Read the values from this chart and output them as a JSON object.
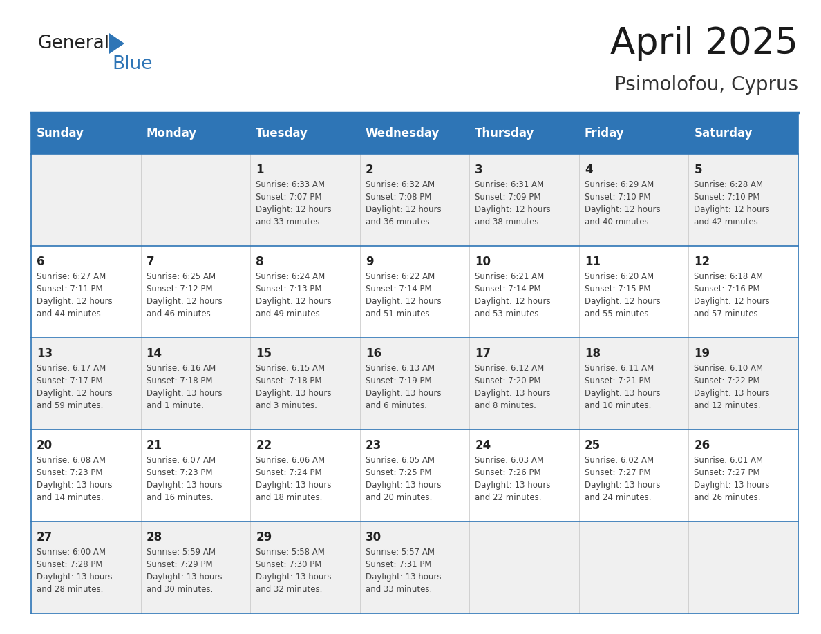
{
  "title": "April 2025",
  "subtitle": "Psimolofou, Cyprus",
  "header_bg": "#2e75b6",
  "header_text": "#ffffff",
  "day_names": [
    "Sunday",
    "Monday",
    "Tuesday",
    "Wednesday",
    "Thursday",
    "Friday",
    "Saturday"
  ],
  "row_bg_even": "#f0f0f0",
  "row_bg_odd": "#ffffff",
  "cell_text_color": "#444444",
  "day_num_color": "#222222",
  "grid_line_color": "#2e75b6",
  "logo_general_color": "#222222",
  "logo_blue_color": "#2e75b6",
  "logo_triangle_color": "#2e75b6",
  "calendar": [
    [
      {
        "day": null
      },
      {
        "day": null
      },
      {
        "day": 1,
        "sunrise": "6:33 AM",
        "sunset": "7:07 PM",
        "daylight": "12 hours\nand 33 minutes."
      },
      {
        "day": 2,
        "sunrise": "6:32 AM",
        "sunset": "7:08 PM",
        "daylight": "12 hours\nand 36 minutes."
      },
      {
        "day": 3,
        "sunrise": "6:31 AM",
        "sunset": "7:09 PM",
        "daylight": "12 hours\nand 38 minutes."
      },
      {
        "day": 4,
        "sunrise": "6:29 AM",
        "sunset": "7:10 PM",
        "daylight": "12 hours\nand 40 minutes."
      },
      {
        "day": 5,
        "sunrise": "6:28 AM",
        "sunset": "7:10 PM",
        "daylight": "12 hours\nand 42 minutes."
      }
    ],
    [
      {
        "day": 6,
        "sunrise": "6:27 AM",
        "sunset": "7:11 PM",
        "daylight": "12 hours\nand 44 minutes."
      },
      {
        "day": 7,
        "sunrise": "6:25 AM",
        "sunset": "7:12 PM",
        "daylight": "12 hours\nand 46 minutes."
      },
      {
        "day": 8,
        "sunrise": "6:24 AM",
        "sunset": "7:13 PM",
        "daylight": "12 hours\nand 49 minutes."
      },
      {
        "day": 9,
        "sunrise": "6:22 AM",
        "sunset": "7:14 PM",
        "daylight": "12 hours\nand 51 minutes."
      },
      {
        "day": 10,
        "sunrise": "6:21 AM",
        "sunset": "7:14 PM",
        "daylight": "12 hours\nand 53 minutes."
      },
      {
        "day": 11,
        "sunrise": "6:20 AM",
        "sunset": "7:15 PM",
        "daylight": "12 hours\nand 55 minutes."
      },
      {
        "day": 12,
        "sunrise": "6:18 AM",
        "sunset": "7:16 PM",
        "daylight": "12 hours\nand 57 minutes."
      }
    ],
    [
      {
        "day": 13,
        "sunrise": "6:17 AM",
        "sunset": "7:17 PM",
        "daylight": "12 hours\nand 59 minutes."
      },
      {
        "day": 14,
        "sunrise": "6:16 AM",
        "sunset": "7:18 PM",
        "daylight": "13 hours\nand 1 minute."
      },
      {
        "day": 15,
        "sunrise": "6:15 AM",
        "sunset": "7:18 PM",
        "daylight": "13 hours\nand 3 minutes."
      },
      {
        "day": 16,
        "sunrise": "6:13 AM",
        "sunset": "7:19 PM",
        "daylight": "13 hours\nand 6 minutes."
      },
      {
        "day": 17,
        "sunrise": "6:12 AM",
        "sunset": "7:20 PM",
        "daylight": "13 hours\nand 8 minutes."
      },
      {
        "day": 18,
        "sunrise": "6:11 AM",
        "sunset": "7:21 PM",
        "daylight": "13 hours\nand 10 minutes."
      },
      {
        "day": 19,
        "sunrise": "6:10 AM",
        "sunset": "7:22 PM",
        "daylight": "13 hours\nand 12 minutes."
      }
    ],
    [
      {
        "day": 20,
        "sunrise": "6:08 AM",
        "sunset": "7:23 PM",
        "daylight": "13 hours\nand 14 minutes."
      },
      {
        "day": 21,
        "sunrise": "6:07 AM",
        "sunset": "7:23 PM",
        "daylight": "13 hours\nand 16 minutes."
      },
      {
        "day": 22,
        "sunrise": "6:06 AM",
        "sunset": "7:24 PM",
        "daylight": "13 hours\nand 18 minutes."
      },
      {
        "day": 23,
        "sunrise": "6:05 AM",
        "sunset": "7:25 PM",
        "daylight": "13 hours\nand 20 minutes."
      },
      {
        "day": 24,
        "sunrise": "6:03 AM",
        "sunset": "7:26 PM",
        "daylight": "13 hours\nand 22 minutes."
      },
      {
        "day": 25,
        "sunrise": "6:02 AM",
        "sunset": "7:27 PM",
        "daylight": "13 hours\nand 24 minutes."
      },
      {
        "day": 26,
        "sunrise": "6:01 AM",
        "sunset": "7:27 PM",
        "daylight": "13 hours\nand 26 minutes."
      }
    ],
    [
      {
        "day": 27,
        "sunrise": "6:00 AM",
        "sunset": "7:28 PM",
        "daylight": "13 hours\nand 28 minutes."
      },
      {
        "day": 28,
        "sunrise": "5:59 AM",
        "sunset": "7:29 PM",
        "daylight": "13 hours\nand 30 minutes."
      },
      {
        "day": 29,
        "sunrise": "5:58 AM",
        "sunset": "7:30 PM",
        "daylight": "13 hours\nand 32 minutes."
      },
      {
        "day": 30,
        "sunrise": "5:57 AM",
        "sunset": "7:31 PM",
        "daylight": "13 hours\nand 33 minutes."
      },
      {
        "day": null
      },
      {
        "day": null
      },
      {
        "day": null
      }
    ]
  ]
}
